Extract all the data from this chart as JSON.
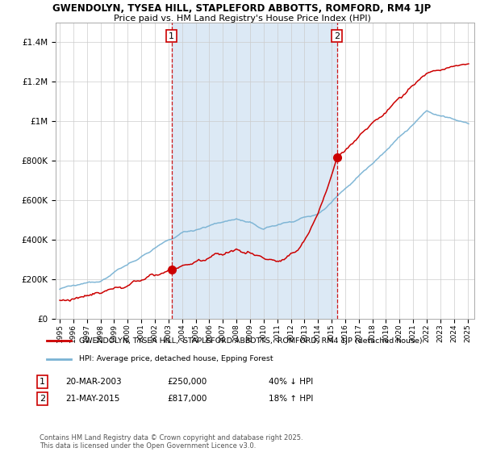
{
  "title1": "GWENDOLYN, TYSEA HILL, STAPLEFORD ABBOTTS, ROMFORD, RM4 1JP",
  "title2": "Price paid vs. HM Land Registry's House Price Index (HPI)",
  "sale1_date": "20-MAR-2003",
  "sale1_price": 250000,
  "sale1_year": 2003.22,
  "sale1_pct": "40% ↓ HPI",
  "sale2_date": "21-MAY-2015",
  "sale2_price": 817000,
  "sale2_year": 2015.39,
  "sale2_pct": "18% ↑ HPI",
  "legend_red": "GWENDOLYN, TYSEA HILL,  STAPLEFORD ABBOTTS,  ROMFORD, RM4 1JP (detached house)",
  "legend_blue": "HPI: Average price, detached house, Epping Forest",
  "footer": "Contains HM Land Registry data © Crown copyright and database right 2025.\nThis data is licensed under the Open Government Licence v3.0.",
  "bg_shade": "#dce9f5",
  "plot_bg": "#ffffff",
  "red_color": "#cc0000",
  "blue_color": "#7ab3d4",
  "dashed_color": "#cc0000",
  "ylim_max": 1500000,
  "yticks": [
    0,
    200000,
    400000,
    600000,
    800000,
    1000000,
    1200000,
    1400000
  ],
  "xstart": 1994.7,
  "xend": 2025.5
}
